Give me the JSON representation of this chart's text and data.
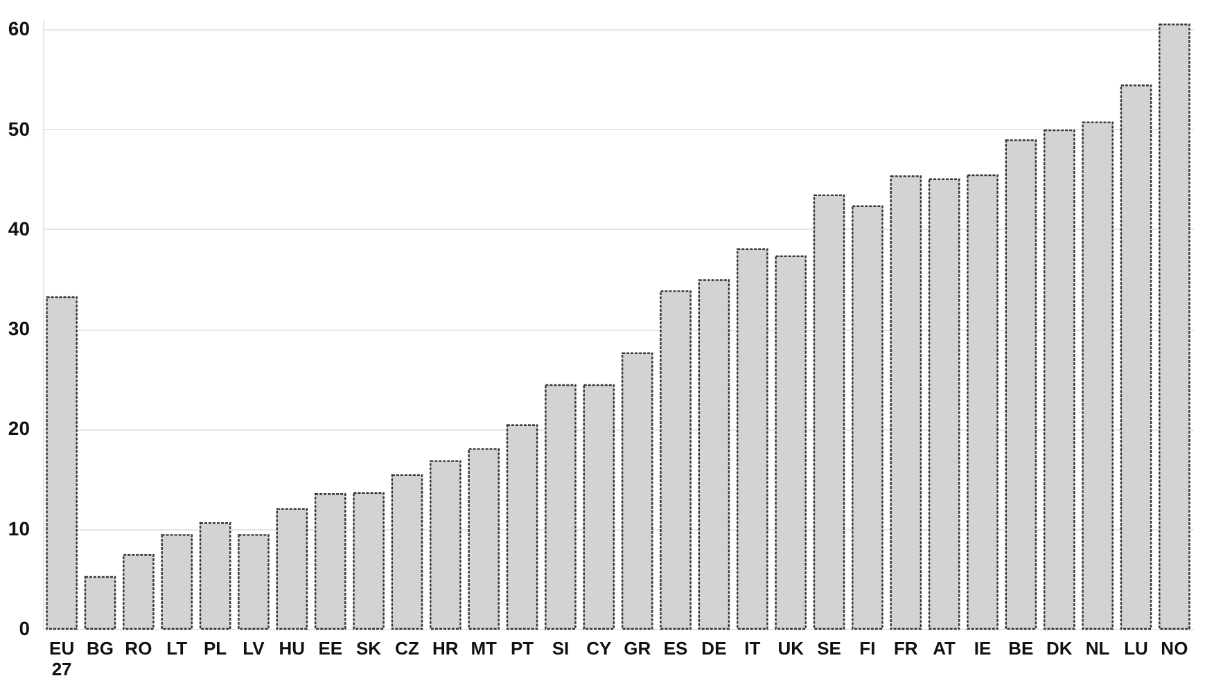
{
  "chart_data": {
    "type": "bar",
    "categories": [
      "EU 27",
      "BG",
      "RO",
      "LT",
      "PL",
      "LV",
      "HU",
      "EE",
      "SK",
      "CZ",
      "HR",
      "MT",
      "PT",
      "SI",
      "CY",
      "GR",
      "ES",
      "DE",
      "IT",
      "UK",
      "SE",
      "FI",
      "FR",
      "AT",
      "IE",
      "BE",
      "DK",
      "NL",
      "LU",
      "NO"
    ],
    "values": [
      33.2,
      5.2,
      7.4,
      9.4,
      10.6,
      9.4,
      12.0,
      13.5,
      13.6,
      15.4,
      16.8,
      18.0,
      20.4,
      24.4,
      24.4,
      27.6,
      33.8,
      34.9,
      38.0,
      37.3,
      43.4,
      42.3,
      45.3,
      45.0,
      45.4,
      48.9,
      49.9,
      50.7,
      54.4,
      60.5
    ],
    "color": "#d3d3d3",
    "ylim": [
      0,
      61
    ],
    "yticks": [
      0,
      10,
      20,
      30,
      40,
      50,
      60
    ],
    "grid": "y"
  }
}
